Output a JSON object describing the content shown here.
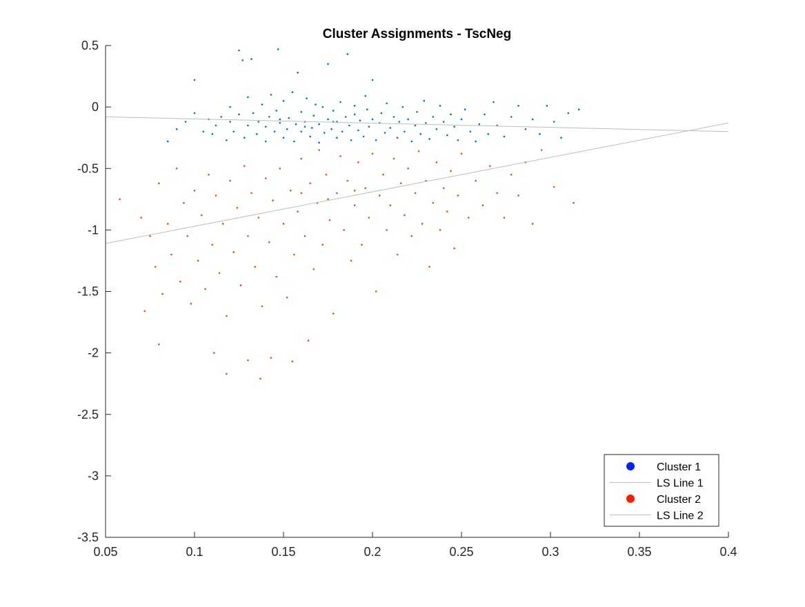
{
  "chart_data": {
    "type": "scatter",
    "title": "Cluster Assignments - TscNeg",
    "xlabel": "",
    "ylabel": "",
    "xlim": [
      0.05,
      0.4
    ],
    "ylim": [
      -3.5,
      0.5
    ],
    "xticks": [
      0.05,
      0.1,
      0.15,
      0.2,
      0.25,
      0.3,
      0.35,
      0.4
    ],
    "xtick_labels": [
      "0.05",
      "0.1",
      "0.15",
      "0.2",
      "0.25",
      "0.3",
      "0.35",
      "0.4"
    ],
    "yticks": [
      -3.5,
      -3,
      -2.5,
      -2,
      -1.5,
      -1,
      -0.5,
      0,
      0.5
    ],
    "ytick_labels": [
      "-3.5",
      "-3",
      "-2.5",
      "-2",
      "-1.5",
      "-1",
      "-0.5",
      "0",
      "0.5"
    ],
    "grid": false,
    "legend_position": "bottom-right",
    "legend": [
      "Cluster 1",
      "LS Line 1",
      "Cluster 2",
      "LS Line 2"
    ],
    "series": [
      {
        "name": "Cluster 1",
        "kind": "scatter",
        "color": "#0072BD",
        "legend_color": "#0022FF",
        "points": [
          [
            0.085,
            -0.28
          ],
          [
            0.09,
            -0.18
          ],
          [
            0.095,
            -0.12
          ],
          [
            0.1,
            -0.05
          ],
          [
            0.1,
            0.22
          ],
          [
            0.105,
            -0.2
          ],
          [
            0.108,
            -0.1
          ],
          [
            0.11,
            -0.22
          ],
          [
            0.112,
            -0.15
          ],
          [
            0.115,
            -0.08
          ],
          [
            0.118,
            -0.27
          ],
          [
            0.12,
            -0.12
          ],
          [
            0.12,
            0.0
          ],
          [
            0.122,
            -0.2
          ],
          [
            0.125,
            -0.06
          ],
          [
            0.125,
            0.46
          ],
          [
            0.127,
            0.38
          ],
          [
            0.128,
            -0.25
          ],
          [
            0.13,
            -0.15
          ],
          [
            0.13,
            0.08
          ],
          [
            0.132,
            0.39
          ],
          [
            0.133,
            -0.05
          ],
          [
            0.135,
            -0.22
          ],
          [
            0.136,
            -0.12
          ],
          [
            0.138,
            0.02
          ],
          [
            0.14,
            -0.28
          ],
          [
            0.14,
            -0.16
          ],
          [
            0.142,
            -0.08
          ],
          [
            0.143,
            0.1
          ],
          [
            0.145,
            -0.2
          ],
          [
            0.146,
            -0.03
          ],
          [
            0.147,
            0.47
          ],
          [
            0.148,
            -0.13
          ],
          [
            0.15,
            -0.25
          ],
          [
            0.15,
            0.05
          ],
          [
            0.152,
            -0.18
          ],
          [
            0.153,
            -0.09
          ],
          [
            0.155,
            0.12
          ],
          [
            0.156,
            -0.28
          ],
          [
            0.157,
            -0.14
          ],
          [
            0.158,
            0.28
          ],
          [
            0.16,
            -0.2
          ],
          [
            0.16,
            -0.04
          ],
          [
            0.162,
            -0.12
          ],
          [
            0.163,
            0.07
          ],
          [
            0.165,
            -0.24
          ],
          [
            0.166,
            -0.17
          ],
          [
            0.167,
            -0.07
          ],
          [
            0.168,
            0.02
          ],
          [
            0.17,
            -0.29
          ],
          [
            0.17,
            -0.14
          ],
          [
            0.172,
            0.0
          ],
          [
            0.173,
            -0.21
          ],
          [
            0.175,
            -0.1
          ],
          [
            0.175,
            0.35
          ],
          [
            0.177,
            -0.18
          ],
          [
            0.178,
            -0.03
          ],
          [
            0.18,
            -0.25
          ],
          [
            0.18,
            -0.12
          ],
          [
            0.182,
            0.04
          ],
          [
            0.183,
            -0.2
          ],
          [
            0.185,
            -0.08
          ],
          [
            0.186,
            0.43
          ],
          [
            0.187,
            -0.15
          ],
          [
            0.188,
            -0.27
          ],
          [
            0.19,
            -0.06
          ],
          [
            0.19,
            0.01
          ],
          [
            0.192,
            -0.19
          ],
          [
            0.193,
            -0.11
          ],
          [
            0.195,
            -0.24
          ],
          [
            0.196,
            0.09
          ],
          [
            0.197,
            -0.02
          ],
          [
            0.198,
            -0.16
          ],
          [
            0.2,
            -0.1
          ],
          [
            0.2,
            0.22
          ],
          [
            0.202,
            -0.27
          ],
          [
            0.204,
            -0.13
          ],
          [
            0.205,
            -0.05
          ],
          [
            0.207,
            -0.21
          ],
          [
            0.208,
            0.03
          ],
          [
            0.21,
            -0.17
          ],
          [
            0.212,
            -0.08
          ],
          [
            0.214,
            -0.25
          ],
          [
            0.215,
            -0.12
          ],
          [
            0.217,
            0.0
          ],
          [
            0.218,
            -0.2
          ],
          [
            0.22,
            -0.1
          ],
          [
            0.222,
            -0.28
          ],
          [
            0.224,
            -0.15
          ],
          [
            0.225,
            -0.04
          ],
          [
            0.227,
            -0.22
          ],
          [
            0.229,
            0.05
          ],
          [
            0.23,
            -0.13
          ],
          [
            0.232,
            -0.26
          ],
          [
            0.234,
            -0.08
          ],
          [
            0.236,
            -0.18
          ],
          [
            0.238,
            0.01
          ],
          [
            0.24,
            -0.12
          ],
          [
            0.242,
            -0.23
          ],
          [
            0.244,
            -0.06
          ],
          [
            0.246,
            -0.16
          ],
          [
            0.248,
            -0.27
          ],
          [
            0.25,
            -0.1
          ],
          [
            0.252,
            -0.02
          ],
          [
            0.255,
            -0.2
          ],
          [
            0.258,
            -0.28
          ],
          [
            0.26,
            -0.14
          ],
          [
            0.263,
            -0.06
          ],
          [
            0.265,
            -0.22
          ],
          [
            0.268,
            0.04
          ],
          [
            0.27,
            -0.15
          ],
          [
            0.274,
            -0.24
          ],
          [
            0.278,
            -0.08
          ],
          [
            0.282,
            0.01
          ],
          [
            0.286,
            -0.18
          ],
          [
            0.29,
            -0.1
          ],
          [
            0.294,
            -0.22
          ],
          [
            0.298,
            0.01
          ],
          [
            0.302,
            -0.12
          ],
          [
            0.306,
            -0.25
          ],
          [
            0.31,
            -0.05
          ],
          [
            0.316,
            -0.02
          ],
          [
            0.148,
            -0.1
          ],
          [
            0.162,
            -0.16
          ],
          [
            0.178,
            -0.12
          ]
        ]
      },
      {
        "name": "LS Line 1",
        "kind": "line",
        "color": "#BDBDBD",
        "points": [
          [
            0.05,
            -0.08
          ],
          [
            0.4,
            -0.2
          ]
        ]
      },
      {
        "name": "Cluster 2",
        "kind": "scatter",
        "color": "#D95319",
        "legend_color": "#FF1A00",
        "points": [
          [
            0.058,
            -0.75
          ],
          [
            0.07,
            -0.9
          ],
          [
            0.072,
            -1.66
          ],
          [
            0.075,
            -1.05
          ],
          [
            0.078,
            -1.3
          ],
          [
            0.08,
            -1.93
          ],
          [
            0.08,
            -0.62
          ],
          [
            0.082,
            -1.52
          ],
          [
            0.085,
            -0.95
          ],
          [
            0.087,
            -1.2
          ],
          [
            0.09,
            -0.5
          ],
          [
            0.092,
            -1.42
          ],
          [
            0.094,
            -0.78
          ],
          [
            0.096,
            -1.05
          ],
          [
            0.098,
            -1.6
          ],
          [
            0.1,
            -0.68
          ],
          [
            0.102,
            -1.25
          ],
          [
            0.104,
            -0.88
          ],
          [
            0.106,
            -1.48
          ],
          [
            0.108,
            -0.55
          ],
          [
            0.11,
            -1.12
          ],
          [
            0.111,
            -2.0
          ],
          [
            0.112,
            -0.72
          ],
          [
            0.114,
            -1.35
          ],
          [
            0.116,
            -0.95
          ],
          [
            0.118,
            -1.7
          ],
          [
            0.118,
            -2.17
          ],
          [
            0.12,
            -0.6
          ],
          [
            0.122,
            -1.18
          ],
          [
            0.124,
            -0.82
          ],
          [
            0.126,
            -1.45
          ],
          [
            0.128,
            -0.48
          ],
          [
            0.13,
            -1.05
          ],
          [
            0.13,
            -2.06
          ],
          [
            0.132,
            -0.7
          ],
          [
            0.134,
            -1.3
          ],
          [
            0.136,
            -0.9
          ],
          [
            0.137,
            -2.21
          ],
          [
            0.138,
            -1.62
          ],
          [
            0.14,
            -0.58
          ],
          [
            0.142,
            -1.1
          ],
          [
            0.143,
            -2.04
          ],
          [
            0.144,
            -0.76
          ],
          [
            0.146,
            -1.38
          ],
          [
            0.148,
            -0.5
          ],
          [
            0.15,
            -0.95
          ],
          [
            0.152,
            -1.55
          ],
          [
            0.154,
            -0.68
          ],
          [
            0.155,
            -2.07
          ],
          [
            0.156,
            -1.2
          ],
          [
            0.158,
            -0.85
          ],
          [
            0.16,
            -0.42
          ],
          [
            0.162,
            -1.05
          ],
          [
            0.164,
            -1.9
          ],
          [
            0.165,
            -0.62
          ],
          [
            0.167,
            -1.32
          ],
          [
            0.169,
            -0.78
          ],
          [
            0.17,
            -0.35
          ],
          [
            0.172,
            -1.12
          ],
          [
            0.174,
            -0.55
          ],
          [
            0.176,
            -0.92
          ],
          [
            0.178,
            -1.68
          ],
          [
            0.18,
            -0.7
          ],
          [
            0.182,
            -0.4
          ],
          [
            0.184,
            -1.0
          ],
          [
            0.186,
            -0.6
          ],
          [
            0.188,
            -1.25
          ],
          [
            0.19,
            -0.8
          ],
          [
            0.192,
            -0.45
          ],
          [
            0.194,
            -1.12
          ],
          [
            0.196,
            -0.66
          ],
          [
            0.198,
            -0.9
          ],
          [
            0.2,
            -0.38
          ],
          [
            0.202,
            -1.5
          ],
          [
            0.204,
            -0.72
          ],
          [
            0.206,
            -0.55
          ],
          [
            0.208,
            -1.0
          ],
          [
            0.21,
            -0.8
          ],
          [
            0.212,
            -0.42
          ],
          [
            0.214,
            -1.2
          ],
          [
            0.216,
            -0.62
          ],
          [
            0.218,
            -0.88
          ],
          [
            0.22,
            -0.5
          ],
          [
            0.222,
            -1.05
          ],
          [
            0.224,
            -0.7
          ],
          [
            0.226,
            -0.36
          ],
          [
            0.228,
            -0.95
          ],
          [
            0.23,
            -0.6
          ],
          [
            0.232,
            -1.3
          ],
          [
            0.234,
            -0.78
          ],
          [
            0.236,
            -0.45
          ],
          [
            0.238,
            -1.0
          ],
          [
            0.24,
            -0.66
          ],
          [
            0.242,
            -0.85
          ],
          [
            0.244,
            -0.52
          ],
          [
            0.246,
            -1.15
          ],
          [
            0.248,
            -0.72
          ],
          [
            0.25,
            -0.38
          ],
          [
            0.254,
            -0.9
          ],
          [
            0.258,
            -0.6
          ],
          [
            0.262,
            -0.8
          ],
          [
            0.266,
            -0.48
          ],
          [
            0.27,
            -0.7
          ],
          [
            0.274,
            -0.9
          ],
          [
            0.278,
            -0.55
          ],
          [
            0.282,
            -0.72
          ],
          [
            0.286,
            -0.45
          ],
          [
            0.29,
            -0.95
          ],
          [
            0.295,
            -0.35
          ],
          [
            0.302,
            -0.65
          ],
          [
            0.313,
            -0.78
          ],
          [
            0.16,
            -0.7
          ],
          [
            0.175,
            -0.75
          ],
          [
            0.19,
            -0.68
          ]
        ]
      },
      {
        "name": "LS Line 2",
        "kind": "line",
        "color": "#BDBDBD",
        "points": [
          [
            0.05,
            -1.11
          ],
          [
            0.4,
            -0.13
          ]
        ]
      }
    ]
  }
}
